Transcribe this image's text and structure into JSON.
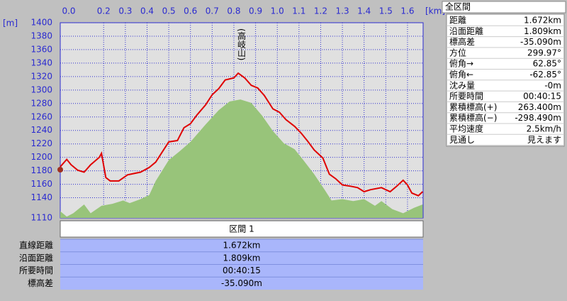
{
  "chart_data": {
    "type": "line",
    "x_unit_label": "[km]",
    "y_unit_label": "[m]",
    "annotation": "(高岐山)",
    "xlim": [
      0,
      1.672
    ],
    "ylim": [
      1110,
      1400
    ],
    "xticks": [
      {
        "value": 0,
        "label": "0.0"
      },
      0.2,
      0.3,
      0.4,
      0.5,
      0.6,
      0.7,
      0.8,
      0.9,
      {
        "value": 1,
        "label": "1.0"
      },
      1.1,
      1.2,
      1.3,
      1.4,
      1.5,
      1.6
    ],
    "yticks": [
      1110,
      1140,
      1160,
      1180,
      1200,
      1220,
      1240,
      1260,
      1280,
      1300,
      1320,
      1340,
      1360,
      1380,
      1400
    ],
    "grid": true,
    "series": [
      {
        "type": "area",
        "color": "#98c47a",
        "x": [
          0,
          0.03,
          0.06,
          0.11,
          0.14,
          0.19,
          0.24,
          0.29,
          0.32,
          0.37,
          0.41,
          0.44,
          0.5,
          0.55,
          0.6,
          0.67,
          0.73,
          0.78,
          0.83,
          0.88,
          0.93,
          0.98,
          1.03,
          1.08,
          1.12,
          1.17,
          1.22,
          1.25,
          1.3,
          1.35,
          1.4,
          1.45,
          1.48,
          1.53,
          1.58,
          1.63,
          1.67
        ],
        "values": [
          1120,
          1112,
          1117,
          1130,
          1117,
          1128,
          1131,
          1136,
          1132,
          1138,
          1144,
          1165,
          1196,
          1209,
          1223,
          1249,
          1270,
          1283,
          1286,
          1281,
          1262,
          1239,
          1221,
          1212,
          1196,
          1175,
          1151,
          1136,
          1138,
          1135,
          1138,
          1128,
          1135,
          1123,
          1117,
          1125,
          1130
        ]
      },
      {
        "type": "line",
        "color": "#e00000",
        "x": [
          0,
          0.03,
          0.05,
          0.08,
          0.11,
          0.14,
          0.18,
          0.19,
          0.21,
          0.23,
          0.27,
          0.31,
          0.34,
          0.37,
          0.41,
          0.44,
          0.47,
          0.5,
          0.54,
          0.57,
          0.6,
          0.63,
          0.67,
          0.7,
          0.73,
          0.76,
          0.8,
          0.82,
          0.85,
          0.88,
          0.91,
          0.94,
          0.98,
          1.01,
          1.04,
          1.08,
          1.11,
          1.14,
          1.17,
          1.21,
          1.24,
          1.27,
          1.3,
          1.34,
          1.37,
          1.4,
          1.43,
          1.48,
          1.52,
          1.55,
          1.58,
          1.6,
          1.62,
          1.65,
          1.67
        ],
        "values": [
          1186,
          1197,
          1189,
          1181,
          1178,
          1189,
          1200,
          1206,
          1170,
          1165,
          1165,
          1174,
          1176,
          1178,
          1185,
          1193,
          1208,
          1223,
          1225,
          1244,
          1250,
          1263,
          1278,
          1293,
          1302,
          1315,
          1318,
          1325,
          1318,
          1307,
          1303,
          1292,
          1272,
          1267,
          1256,
          1246,
          1236,
          1224,
          1211,
          1199,
          1175,
          1168,
          1159,
          1157,
          1155,
          1149,
          1152,
          1155,
          1149,
          1157,
          1166,
          1159,
          1147,
          1143,
          1149
        ]
      }
    ]
  },
  "side_panel": {
    "title": "全区間",
    "rows": [
      [
        "距離",
        "1.672km"
      ],
      [
        "沿面距離",
        "1.809km"
      ],
      [
        "標高差",
        "-35.090m"
      ],
      [
        "方位",
        "299.97°"
      ],
      [
        "俯角→",
        "62.85°"
      ],
      [
        "俯角←",
        "-62.85°"
      ],
      [
        "沈み量",
        "-0m"
      ],
      [
        "所要時間",
        "00:40:15"
      ],
      [
        "累積標高(+)",
        "263.400m"
      ],
      [
        "累積標高(−)",
        "-298.490m"
      ],
      [
        "平均速度",
        "2.5km/h"
      ],
      [
        "見通し",
        "見えます"
      ]
    ]
  },
  "section_table": {
    "title": "区間 1",
    "rows": [
      [
        "直線距離",
        "1.672km"
      ],
      [
        "沿面距離",
        "1.809km"
      ],
      [
        "所要時間",
        "00:40:15"
      ],
      [
        "標高差",
        "-35.090m"
      ]
    ]
  }
}
